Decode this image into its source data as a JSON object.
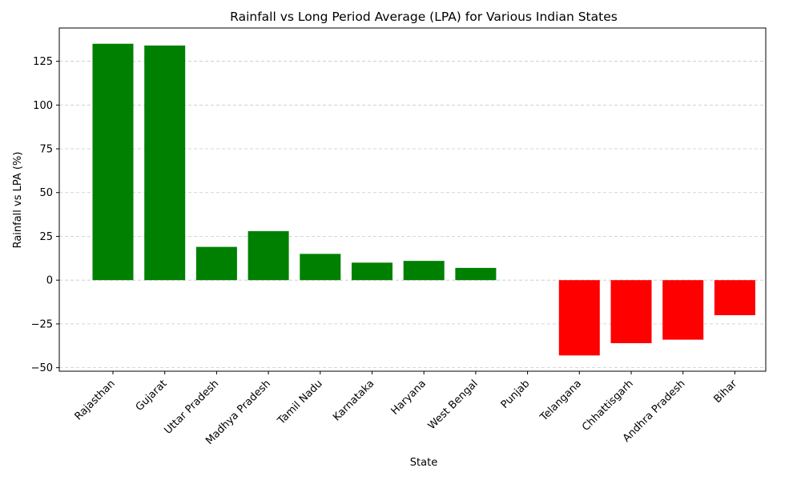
{
  "chart_data": {
    "type": "bar",
    "title": "Rainfall vs Long Period Average (LPA) for Various Indian States",
    "xlabel": "State",
    "ylabel": "Rainfall vs LPA (%)",
    "categories": [
      "Rajasthan",
      "Gujarat",
      "Uttar Pradesh",
      "Madhya Pradesh",
      "Tamil Nadu",
      "Karnataka",
      "Haryana",
      "West Bengal",
      "Punjab",
      "Telangana",
      "Chhattisgarh",
      "Andhra Pradesh",
      "Bihar"
    ],
    "values": [
      135,
      134,
      19,
      28,
      15,
      10,
      11,
      7,
      0,
      -43,
      -36,
      -34,
      -20
    ],
    "ylim": [
      -52,
      144
    ],
    "yticks": [
      -50,
      -25,
      0,
      25,
      50,
      75,
      100,
      125
    ],
    "grid": "y-dashed",
    "colors": {
      "positive": "#008000",
      "negative": "#ff0000"
    }
  }
}
